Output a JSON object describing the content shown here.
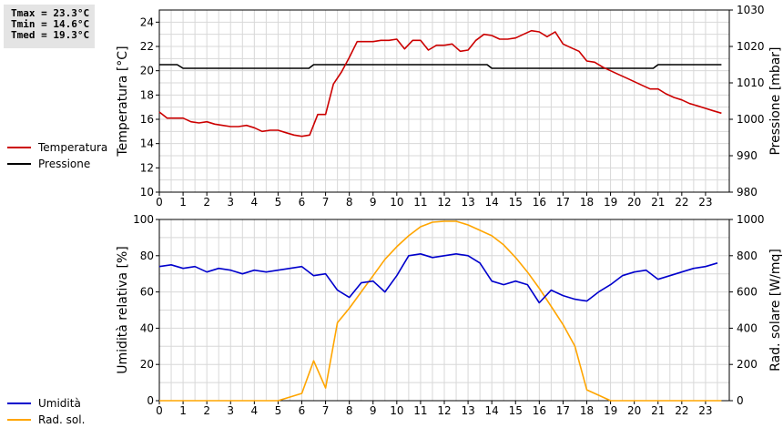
{
  "stats": {
    "tmax": "Tmax = 23.3°C",
    "tmin": "Tmin = 14.6°C",
    "tmed": "Tmed = 19.3°C"
  },
  "legend_top": [
    {
      "label": "Temperatura",
      "color": "#cc0000"
    },
    {
      "label": "Pressione",
      "color": "#000000"
    }
  ],
  "legend_bottom": [
    {
      "label": "Umidità",
      "color": "#0000cc"
    },
    {
      "label": "Rad. sol.",
      "color": "#ffa500"
    }
  ],
  "chart_data": [
    {
      "type": "line",
      "title": "",
      "xlabel": "",
      "xlim": [
        0,
        24
      ],
      "x_ticks": [
        0,
        1,
        2,
        3,
        4,
        5,
        6,
        7,
        8,
        9,
        10,
        11,
        12,
        13,
        14,
        15,
        16,
        17,
        18,
        19,
        20,
        21,
        22,
        23
      ],
      "ylabel_left": "Temperatura [°C]",
      "ylim_left": [
        10,
        25
      ],
      "y_ticks_left": [
        10,
        12,
        14,
        16,
        18,
        20,
        22,
        24
      ],
      "ylabel_right": "Pressione [mbar]",
      "ylim_right": [
        980,
        1030
      ],
      "y_ticks_right": [
        980,
        990,
        1000,
        1010,
        1020,
        1030
      ],
      "grid": true,
      "series": [
        {
          "name": "Temperatura",
          "axis": "left",
          "color": "#cc0000",
          "x": [
            0,
            0.33,
            0.67,
            1,
            1.33,
            1.67,
            2,
            2.33,
            2.67,
            3,
            3.33,
            3.67,
            4,
            4.33,
            4.67,
            5,
            5.33,
            5.67,
            6,
            6.33,
            6.67,
            7,
            7.33,
            7.67,
            8,
            8.33,
            8.67,
            9,
            9.33,
            9.67,
            10,
            10.33,
            10.67,
            11,
            11.33,
            11.67,
            12,
            12.33,
            12.67,
            13,
            13.33,
            13.67,
            14,
            14.33,
            14.67,
            15,
            15.33,
            15.67,
            16,
            16.33,
            16.67,
            17,
            17.33,
            17.67,
            18,
            18.33,
            18.67,
            19,
            19.33,
            19.67,
            20,
            20.33,
            20.67,
            21,
            21.33,
            21.67,
            22,
            22.33,
            22.67,
            23,
            23.33,
            23.67
          ],
          "y": [
            16.6,
            16.1,
            16.1,
            16.1,
            15.8,
            15.7,
            15.8,
            15.6,
            15.5,
            15.4,
            15.4,
            15.5,
            15.3,
            15.0,
            15.1,
            15.1,
            14.9,
            14.7,
            14.6,
            14.7,
            16.4,
            16.4,
            18.9,
            19.9,
            21.1,
            22.4,
            22.4,
            22.4,
            22.5,
            22.5,
            22.6,
            21.8,
            22.5,
            22.5,
            21.7,
            22.1,
            22.1,
            22.2,
            21.6,
            21.7,
            22.5,
            23.0,
            22.9,
            22.6,
            22.6,
            22.7,
            23.0,
            23.3,
            23.2,
            22.8,
            23.2,
            22.2,
            21.9,
            21.6,
            20.8,
            20.7,
            20.3,
            20.0,
            19.7,
            19.4,
            19.1,
            18.8,
            18.5,
            18.5,
            18.1,
            17.8,
            17.6,
            17.3,
            17.1,
            16.9,
            16.7,
            16.5
          ]
        },
        {
          "name": "Pressione",
          "axis": "right",
          "color": "#000000",
          "x": [
            0,
            0.75,
            1,
            6.3,
            6.5,
            13.8,
            14,
            20.8,
            21,
            23.67
          ],
          "y": [
            1015,
            1015,
            1014,
            1014,
            1015,
            1015,
            1014,
            1014,
            1015,
            1015
          ]
        }
      ]
    },
    {
      "type": "line",
      "title": "",
      "xlabel": "",
      "xlim": [
        0,
        24
      ],
      "x_ticks": [
        0,
        1,
        2,
        3,
        4,
        5,
        6,
        7,
        8,
        9,
        10,
        11,
        12,
        13,
        14,
        15,
        16,
        17,
        18,
        19,
        20,
        21,
        22,
        23
      ],
      "ylabel_left": "Umidità relativa [%]",
      "ylim_left": [
        0,
        100
      ],
      "y_ticks_left": [
        0,
        20,
        40,
        60,
        80,
        100
      ],
      "ylabel_right": "Rad. solare [W/mq]",
      "ylim_right": [
        0,
        1000
      ],
      "y_ticks_right": [
        0,
        200,
        400,
        600,
        800,
        1000
      ],
      "grid": true,
      "series": [
        {
          "name": "Umidità",
          "axis": "left",
          "color": "#0000cc",
          "x": [
            0,
            0.5,
            1,
            1.5,
            2,
            2.5,
            3,
            3.5,
            4,
            4.5,
            5,
            5.5,
            6,
            6.5,
            7,
            7.5,
            8,
            8.5,
            9,
            9.5,
            10,
            10.5,
            11,
            11.5,
            12,
            12.5,
            13,
            13.5,
            14,
            14.5,
            15,
            15.5,
            16,
            16.5,
            17,
            17.5,
            18,
            18.5,
            19,
            19.5,
            20,
            20.5,
            21,
            21.5,
            22,
            22.5,
            23,
            23.5
          ],
          "y": [
            74,
            75,
            73,
            74,
            71,
            73,
            72,
            70,
            72,
            71,
            72,
            73,
            74,
            69,
            70,
            61,
            57,
            65,
            66,
            60,
            69,
            80,
            81,
            79,
            80,
            81,
            80,
            76,
            66,
            64,
            66,
            64,
            54,
            61,
            58,
            56,
            55,
            60,
            64,
            69,
            71,
            72,
            67,
            69,
            71,
            73,
            74,
            76
          ]
        },
        {
          "name": "Rad. sol.",
          "axis": "right",
          "color": "#ffa500",
          "x": [
            0,
            5,
            5.5,
            6,
            6.5,
            7,
            7.5,
            8,
            8.5,
            9,
            9.5,
            10,
            10.5,
            11,
            11.5,
            12,
            12.5,
            13,
            13.5,
            14,
            14.5,
            15,
            15.5,
            16,
            16.5,
            17,
            17.5,
            18,
            18.5,
            19,
            23.67
          ],
          "y": [
            0,
            0,
            20,
            40,
            220,
            70,
            430,
            510,
            600,
            690,
            780,
            850,
            910,
            960,
            985,
            990,
            990,
            970,
            940,
            910,
            860,
            790,
            710,
            620,
            520,
            420,
            300,
            60,
            30,
            0,
            0
          ]
        }
      ]
    }
  ]
}
